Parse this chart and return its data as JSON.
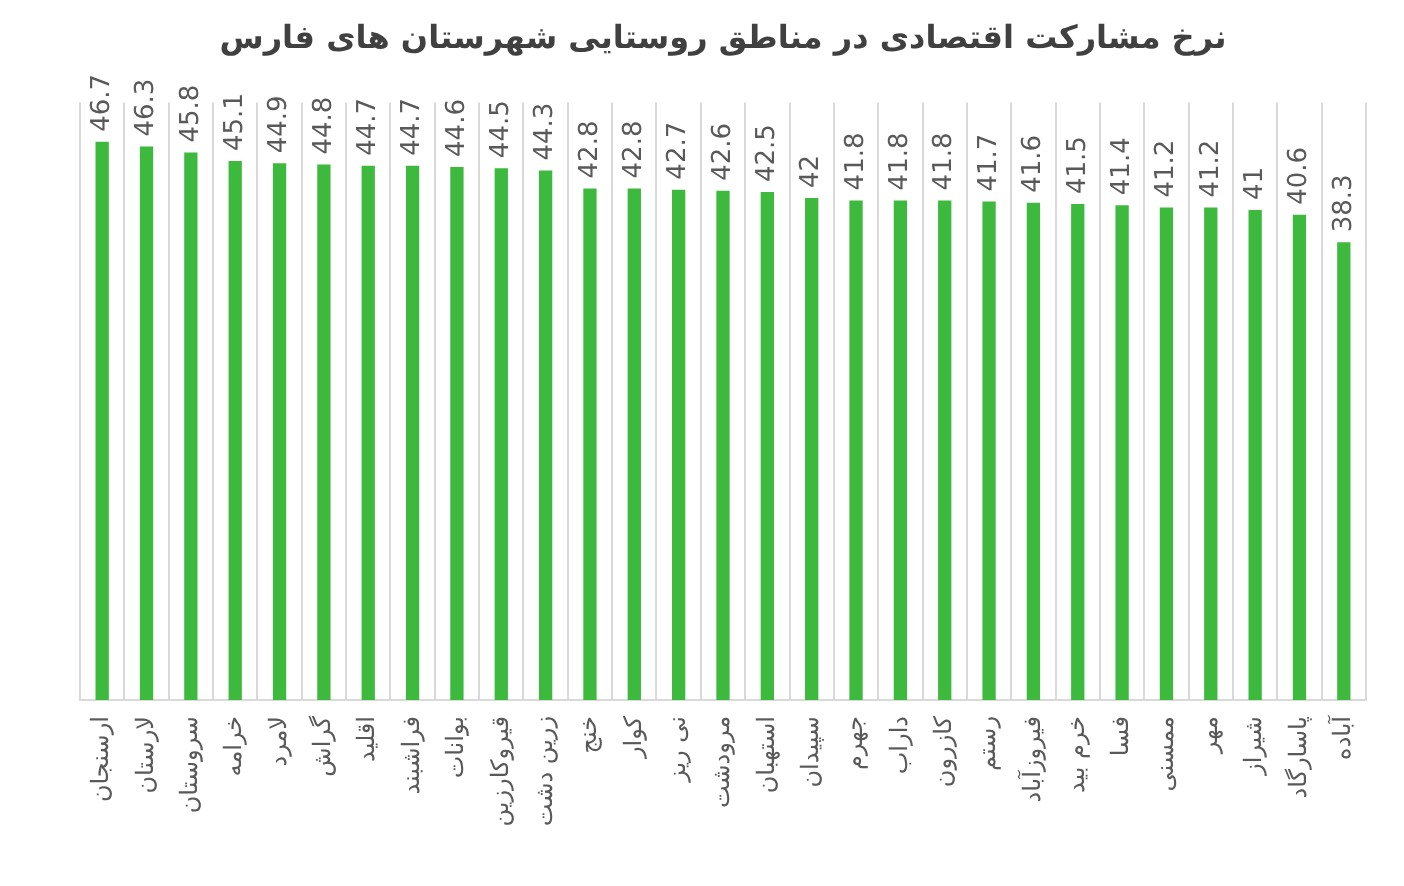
{
  "chart_data": {
    "type": "bar",
    "title": "نرخ مشارکت اقتصادی در مناطق روستایی شهرستان های فارس",
    "categories": [
      "ارسنجان",
      "لارستان",
      "سروستان",
      "خرامه",
      "لامرد",
      "گراش",
      "اقلید",
      "فراشبند",
      "بوانات",
      "قیروکارزین",
      "زرین دشت",
      "خنج",
      "کوار",
      "نی ریز",
      "مرودشت",
      "استهبان",
      "سپیدان",
      "جهرم",
      "داراب",
      "کازرون",
      "رستم",
      "فیروزآباد",
      "خرم بید",
      "فسا",
      "ممسنی",
      "مهر",
      "شیراز",
      "پاسارگاد",
      "آباده"
    ],
    "values": [
      46.7,
      46.3,
      45.8,
      45.1,
      44.9,
      44.8,
      44.7,
      44.7,
      44.6,
      44.5,
      44.3,
      42.8,
      42.8,
      42.7,
      42.6,
      42.5,
      42,
      41.8,
      41.8,
      41.8,
      41.7,
      41.6,
      41.5,
      41.4,
      41.2,
      41.2,
      41,
      40.6,
      38.3
    ],
    "color": "#3dba3d",
    "ylim": [
      0,
      50
    ],
    "data_labels": true,
    "grid": "x",
    "tick_labels": "x"
  }
}
